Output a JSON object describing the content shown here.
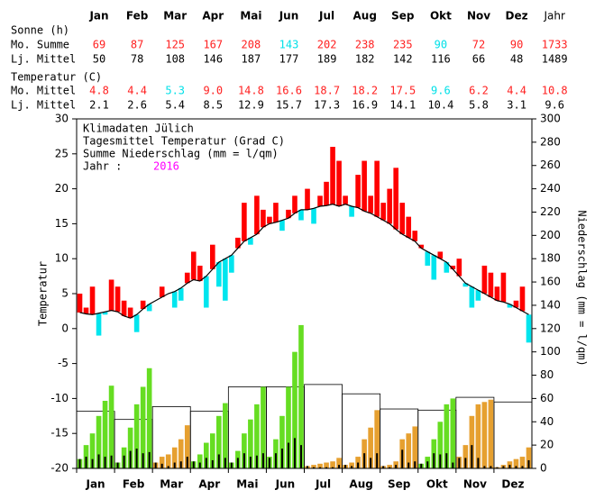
{
  "table": {
    "columns": [
      "Jan",
      "Feb",
      "Mar",
      "Apr",
      "Mai",
      "Jun",
      "Jul",
      "Aug",
      "Sep",
      "Okt",
      "Nov",
      "Dez",
      "Jahr"
    ],
    "above_color": "#ff2020",
    "below_color": "#00e0e8",
    "sections": [
      {
        "title": "Sonne (h)",
        "rows": [
          {
            "label": "Mo. Summe",
            "values": [
              "69",
              "87",
              "125",
              "167",
              "208",
              "143",
              "202",
              "238",
              "235",
              "90",
              "72",
              "90",
              "1733"
            ]
          },
          {
            "label": "Lj. Mittel",
            "values": [
              "50",
              "78",
              "108",
              "146",
              "187",
              "177",
              "189",
              "182",
              "142",
              "116",
              "66",
              "48",
              "1489"
            ]
          }
        ]
      },
      {
        "title": "Temperatur (C)",
        "rows": [
          {
            "label": "Mo. Mittel",
            "values": [
              "4.8",
              "4.4",
              "5.3",
              "9.0",
              "14.8",
              "16.6",
              "18.7",
              "18.2",
              "17.5",
              "9.6",
              "6.2",
              "4.4",
              "10.8"
            ]
          },
          {
            "label": "Lj. Mittel",
            "values": [
              "2.1",
              "2.6",
              "5.4",
              "8.5",
              "12.9",
              "15.7",
              "17.3",
              "16.9",
              "14.1",
              "10.4",
              "5.8",
              "3.1",
              "9.6"
            ]
          }
        ]
      }
    ]
  },
  "chart_data": {
    "type": "climate",
    "title": "Klimadaten Jülich",
    "subtitle_lines": [
      "Tagesmittel Temperatur (Grad C)",
      "Summe Niederschlag (mm = l/qm)"
    ],
    "year_label": "Jahr :",
    "year": "2016",
    "year_color": "#ff00ff",
    "ylabel": "Temperatur",
    "y2label": "Niederschlag (mm = l/qm)",
    "categories": [
      "Jan",
      "Feb",
      "Mar",
      "Apr",
      "Mai",
      "Jun",
      "Jul",
      "Aug",
      "Sep",
      "Okt",
      "Nov",
      "Dez"
    ],
    "ylim": [
      -20,
      30
    ],
    "yticks": [
      -20,
      -15,
      -10,
      -5,
      0,
      5,
      10,
      15,
      20,
      25,
      30
    ],
    "y2lim": [
      0,
      300
    ],
    "y2ticks": [
      0,
      20,
      40,
      60,
      80,
      100,
      120,
      140,
      160,
      180,
      200,
      220,
      240,
      260,
      280,
      300
    ],
    "temperature": {
      "above_color": "#ff0000",
      "below_color": "#00e5ee",
      "values": [
        5,
        3,
        6,
        -1,
        2,
        7,
        6,
        4,
        3,
        -0.5,
        4,
        2.5,
        4,
        6,
        5,
        3,
        4,
        8,
        11,
        9,
        3,
        12,
        6,
        4,
        8,
        13,
        18,
        12,
        19,
        17,
        16,
        18,
        14,
        17,
        19,
        15.5,
        20,
        15,
        19,
        21,
        26,
        24,
        19,
        16,
        22,
        24,
        19,
        24,
        18,
        20,
        23,
        18,
        16,
        14,
        12,
        9,
        7,
        11,
        8,
        9,
        10,
        6,
        3,
        4,
        9,
        8,
        6,
        8,
        3,
        4,
        6,
        -2
      ]
    },
    "temperature_normal": {
      "color": "#000000",
      "values": [
        2.3,
        2.1,
        2.0,
        2.2,
        2.4,
        2.6,
        2.4,
        1.8,
        1.5,
        2.0,
        2.8,
        3.5,
        4.0,
        4.5,
        5.0,
        5.3,
        5.8,
        6.5,
        7.0,
        6.8,
        7.5,
        8.5,
        9.5,
        10.0,
        10.5,
        11.5,
        12.5,
        13.0,
        13.5,
        14.5,
        15.0,
        15.2,
        15.5,
        15.8,
        16.5,
        17.0,
        17.0,
        17.2,
        17.5,
        17.6,
        17.8,
        17.5,
        17.8,
        17.5,
        17.3,
        16.8,
        16.5,
        16.0,
        15.5,
        15.0,
        14.2,
        13.5,
        13.0,
        12.5,
        11.5,
        11.0,
        10.5,
        10.0,
        9.5,
        8.5,
        7.5,
        6.5,
        6.0,
        5.5,
        5.0,
        4.5,
        4.0,
        3.8,
        3.5,
        3.0,
        2.5,
        2.0
      ]
    },
    "precip_cumulative": {
      "axis": "y2",
      "above_color": "#66dd22",
      "below_color": "#e6a030",
      "values": [
        8,
        20,
        30,
        45,
        58,
        71,
        5,
        18,
        35,
        55,
        70,
        86,
        5,
        10,
        12,
        18,
        25,
        37,
        6,
        12,
        22,
        30,
        45,
        56,
        5,
        15,
        30,
        42,
        55,
        70,
        10,
        25,
        45,
        70,
        100,
        123,
        2,
        3,
        4,
        5,
        6,
        9,
        3,
        5,
        10,
        25,
        35,
        50,
        2,
        3,
        6,
        25,
        30,
        36,
        4,
        10,
        25,
        40,
        55,
        60,
        10,
        20,
        45,
        55,
        57,
        59,
        1,
        3,
        6,
        8,
        10,
        18
      ]
    },
    "precip_normal": {
      "axis": "y2",
      "color": "#000000",
      "values": [
        49,
        42,
        53,
        49,
        70,
        70,
        72,
        64,
        51,
        50,
        61,
        57
      ]
    },
    "precip_daily": {
      "axis": "y2",
      "color": "#000000",
      "values": [
        8,
        10,
        8,
        12,
        10,
        11,
        5,
        11,
        15,
        17,
        13,
        14,
        5,
        4,
        2,
        5,
        6,
        10,
        6,
        5,
        9,
        7,
        12,
        9,
        5,
        9,
        13,
        10,
        11,
        13,
        9,
        13,
        17,
        22,
        26,
        20,
        2,
        1,
        1,
        1,
        1,
        3,
        3,
        2,
        5,
        13,
        9,
        13,
        2,
        1,
        3,
        16,
        5,
        6,
        4,
        6,
        13,
        12,
        13,
        5,
        9,
        9,
        20,
        9,
        2,
        2,
        1,
        2,
        3,
        2,
        2,
        7
      ]
    }
  }
}
